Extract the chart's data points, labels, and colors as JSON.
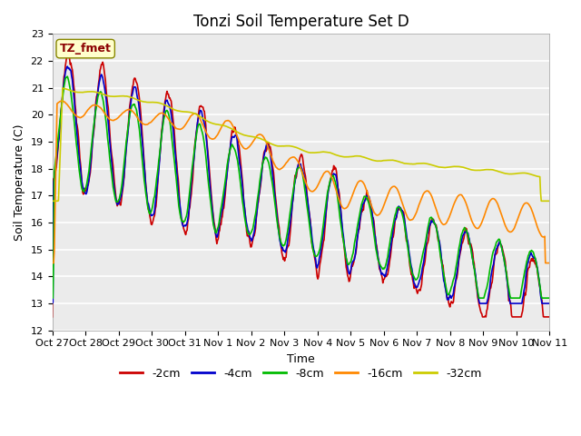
{
  "title": "Tonzi Soil Temperature Set D",
  "xlabel": "Time",
  "ylabel": "Soil Temperature (C)",
  "ylim": [
    12.0,
    23.0
  ],
  "yticks": [
    12.0,
    13.0,
    14.0,
    15.0,
    16.0,
    17.0,
    18.0,
    19.0,
    20.0,
    21.0,
    22.0,
    23.0
  ],
  "xtick_labels": [
    "Oct 27",
    "Oct 28",
    "Oct 29",
    "Oct 30",
    "Oct 31",
    "Nov 1",
    "Nov 2",
    "Nov 3",
    "Nov 4",
    "Nov 5",
    "Nov 6",
    "Nov 7",
    "Nov 8",
    "Nov 9",
    "Nov 10",
    "Nov 11"
  ],
  "legend_labels": [
    "-2cm",
    "-4cm",
    "-8cm",
    "-16cm",
    "-32cm"
  ],
  "legend_colors": [
    "#cc0000",
    "#0000cc",
    "#00bb00",
    "#ff8800",
    "#cccc00"
  ],
  "line_widths": [
    1.2,
    1.2,
    1.2,
    1.2,
    1.2
  ],
  "annotation_text": "TZ_fmet",
  "annotation_color": "#8B0000",
  "annotation_bg": "#ffffcc",
  "plot_bg": "#ebebeb",
  "title_fontsize": 12,
  "label_fontsize": 9,
  "tick_fontsize": 8
}
